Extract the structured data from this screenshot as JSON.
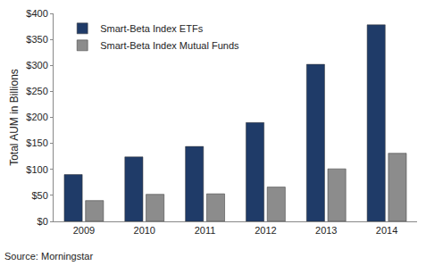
{
  "chart_data": {
    "type": "bar",
    "categories": [
      "2009",
      "2010",
      "2011",
      "2012",
      "2013",
      "2014"
    ],
    "series": [
      {
        "name": "Smart-Beta Index ETFs",
        "color": "#1f3b68",
        "values": [
          90,
          124,
          144,
          190,
          302,
          378
        ]
      },
      {
        "name": "Smart-Beta Index Mutual Funds",
        "color": "#8c8c8c",
        "values": [
          40,
          52,
          53,
          66,
          101,
          131
        ]
      }
    ],
    "y_label": "Total AUM in Billions",
    "ylim": [
      0,
      400
    ],
    "yticks": [
      {
        "value": 0,
        "label": "$0"
      },
      {
        "value": 50,
        "label": "$50"
      },
      {
        "value": 100,
        "label": "$100"
      },
      {
        "value": 150,
        "label": "$150"
      },
      {
        "value": 200,
        "label": "$200"
      },
      {
        "value": 250,
        "label": "$250"
      },
      {
        "value": 300,
        "label": "$300"
      },
      {
        "value": 350,
        "label": "$350"
      },
      {
        "value": 400,
        "label": "$400"
      }
    ],
    "grid": false,
    "legend": "upper left",
    "annotations": [
      "Source: Morningstar"
    ]
  }
}
